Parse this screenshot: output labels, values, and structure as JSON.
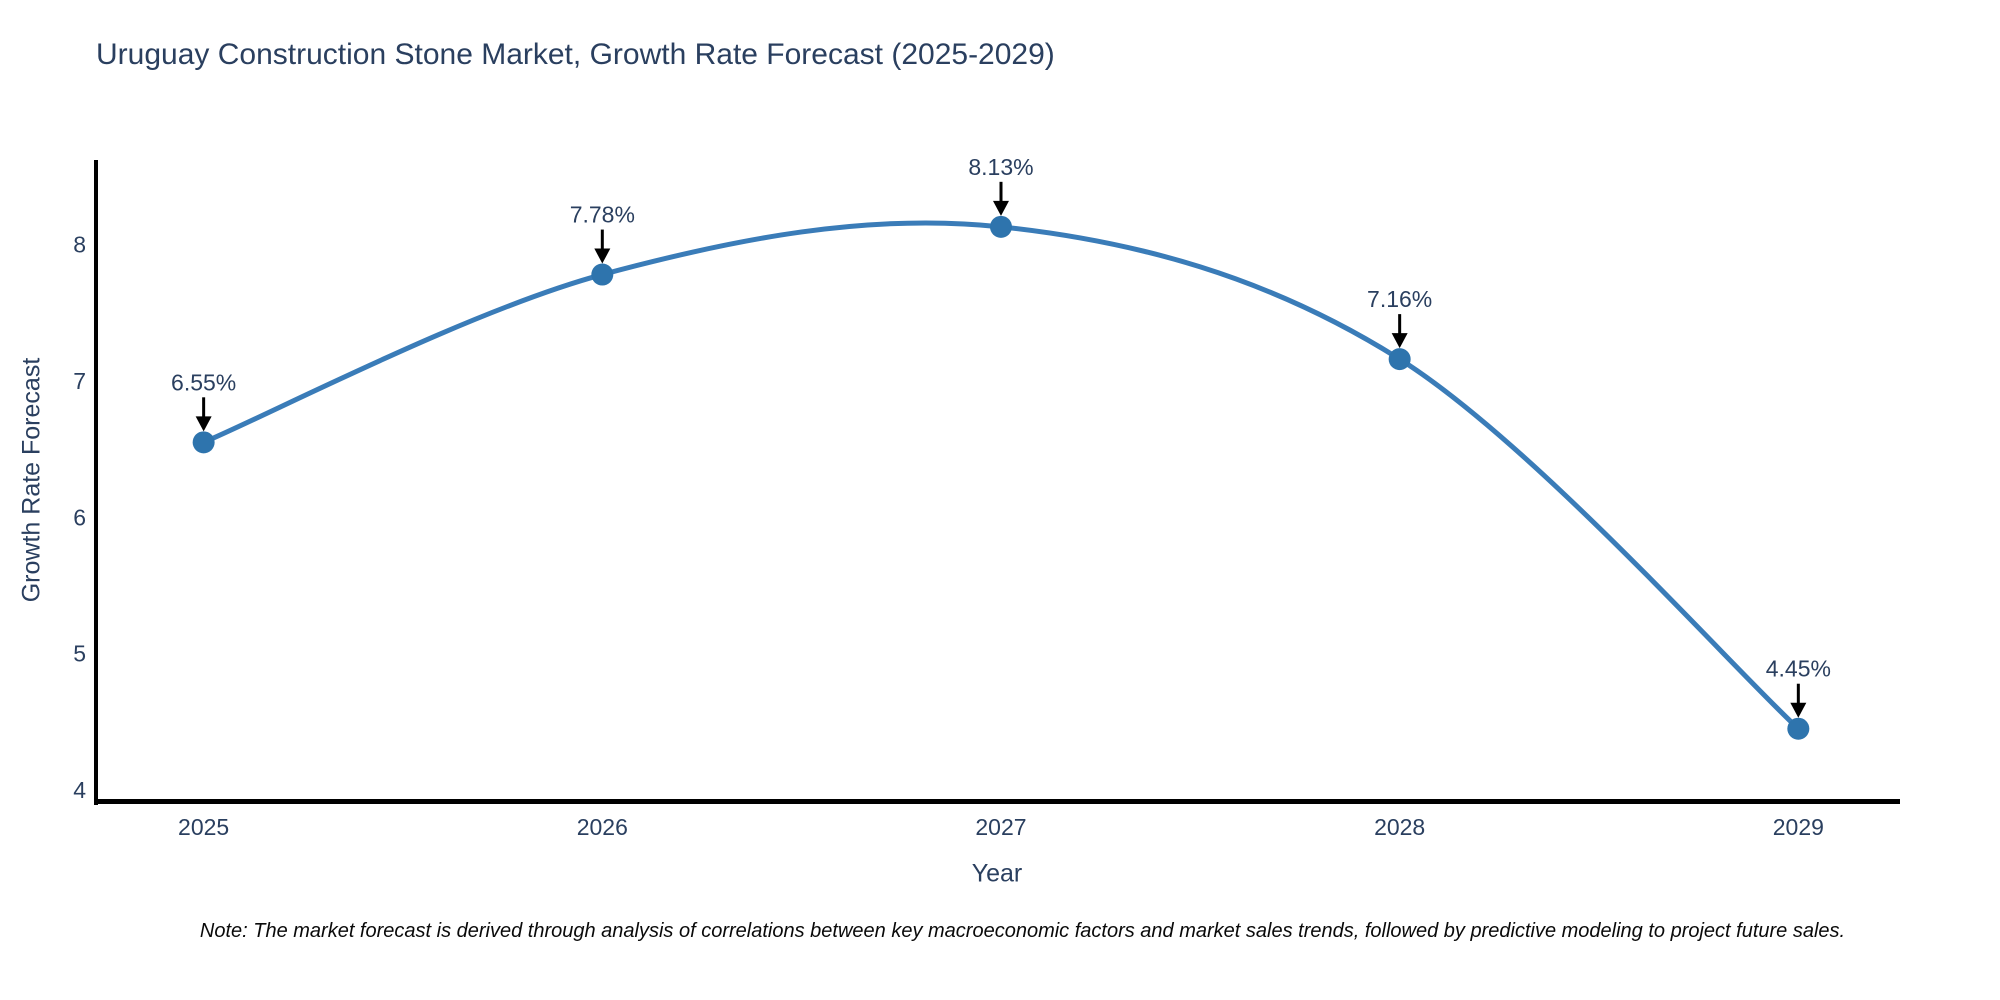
{
  "title": "Uruguay Construction Stone Market, Growth Rate Forecast (2025-2029)",
  "note": "Note: The market forecast is derived through analysis of correlations between key macroeconomic factors and market sales trends, followed by predictive modeling to project future sales.",
  "chart_data": {
    "type": "line",
    "title": "Uruguay Construction Stone Market, Growth Rate Forecast (2025-2029)",
    "xlabel": "Year",
    "ylabel": "Growth Rate Forecast",
    "x": [
      2025,
      2026,
      2027,
      2028,
      2029
    ],
    "values": [
      6.55,
      7.78,
      8.13,
      7.16,
      4.45
    ],
    "point_labels": [
      "6.55%",
      "7.78%",
      "8.13%",
      "7.16%",
      "4.45%"
    ],
    "xticks": [
      2025,
      2026,
      2027,
      2028,
      2029
    ],
    "yticks": [
      4,
      5,
      6,
      7,
      8
    ],
    "xlim": [
      2024.73,
      2029.25
    ],
    "ylim": [
      3.92,
      8.62
    ],
    "grid": false,
    "legend": "none",
    "smooth": true,
    "annotation_arrows": true
  },
  "colors": {
    "line": "#3a7cb8",
    "marker": "#2e74ad",
    "axis": "#000000",
    "text": "#2a3f5f",
    "arrow": "#000000",
    "background": "#ffffff"
  }
}
